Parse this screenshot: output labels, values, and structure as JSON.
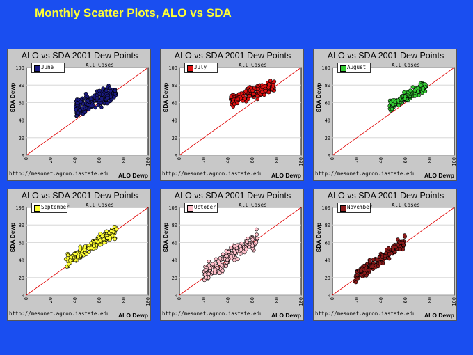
{
  "page": {
    "title": "Monthly Scatter Plots, ALO vs SDA"
  },
  "chart_data": [
    {
      "type": "scatter",
      "title": "ALO vs SDA 2001 Dew Points",
      "subtitle": "All Cases",
      "xlabel": "ALO Dewp",
      "ylabel": "SDA Dewp",
      "url": "http://mesonet.agron.iastate.edu",
      "legend": "June",
      "color": "#1a1a80",
      "xlim": [
        0,
        100
      ],
      "ylim": [
        0,
        100
      ],
      "xticks": [
        0,
        20,
        40,
        60,
        80,
        100
      ],
      "yticks": [
        0,
        20,
        40,
        60,
        80,
        100
      ],
      "ref_line": "y=x",
      "cloud": {
        "x": [
          40,
          74
        ],
        "center": [
          58,
          64
        ],
        "slope": 0.55,
        "spread": 7
      }
    },
    {
      "type": "scatter",
      "title": "ALO vs SDA 2001 Dew Points",
      "subtitle": "All Cases",
      "xlabel": "ALO Dewp",
      "ylabel": "SDA Dewp",
      "url": "http://mesonet.agron.iastate.edu",
      "legend": "July",
      "color": "#dd1111",
      "xlim": [
        0,
        100
      ],
      "ylim": [
        0,
        100
      ],
      "xticks": [
        0,
        20,
        40,
        60,
        80,
        100
      ],
      "yticks": [
        0,
        20,
        40,
        60,
        80,
        100
      ],
      "ref_line": "y=x",
      "cloud": {
        "x": [
          42,
          78
        ],
        "center": [
          62,
          72
        ],
        "slope": 0.45,
        "spread": 5
      }
    },
    {
      "type": "scatter",
      "title": "ALO vs SDA 2001 Dew Points",
      "subtitle": "All Cases",
      "xlabel": "ALO Dewp",
      "ylabel": "SDA Dewp",
      "url": "http://mesonet.agron.iastate.edu",
      "legend": "August",
      "color": "#33cc33",
      "xlim": [
        0,
        100
      ],
      "ylim": [
        0,
        100
      ],
      "xticks": [
        0,
        20,
        40,
        60,
        80,
        100
      ],
      "yticks": [
        0,
        20,
        40,
        60,
        80,
        100
      ],
      "ref_line": "y=x",
      "cloud": {
        "x": [
          47,
          77
        ],
        "center": [
          62,
          68
        ],
        "slope": 0.8,
        "spread": 4
      }
    },
    {
      "type": "scatter",
      "title": "ALO vs SDA 2001 Dew Points",
      "subtitle": "All Cases",
      "xlabel": "ALO Dewp",
      "ylabel": "SDA Dewp",
      "url": "http://mesonet.agron.iastate.edu",
      "legend": "September",
      "color": "#ffff33",
      "xlim": [
        0,
        100
      ],
      "ylim": [
        0,
        100
      ],
      "xticks": [
        0,
        20,
        40,
        60,
        80,
        100
      ],
      "yticks": [
        0,
        20,
        40,
        60,
        80,
        100
      ],
      "ref_line": "y=x",
      "cloud": {
        "x": [
          32,
          74
        ],
        "center": [
          52,
          55
        ],
        "slope": 0.85,
        "spread": 5
      }
    },
    {
      "type": "scatter",
      "title": "ALO vs SDA 2001 Dew Points",
      "subtitle": "All Cases",
      "xlabel": "ALO Dewp",
      "ylabel": "SDA Dewp",
      "url": "http://mesonet.agron.iastate.edu",
      "legend": "October",
      "color": "#ffc0cb",
      "xlim": [
        0,
        100
      ],
      "ylim": [
        0,
        100
      ],
      "xticks": [
        0,
        20,
        40,
        60,
        80,
        100
      ],
      "yticks": [
        0,
        20,
        40,
        60,
        80,
        100
      ],
      "ref_line": "y=x",
      "cloud": {
        "x": [
          20,
          64
        ],
        "center": [
          40,
          42
        ],
        "slope": 0.95,
        "spread": 7
      }
    },
    {
      "type": "scatter",
      "title": "ALO vs SDA 2001 Dew Points",
      "subtitle": "All Cases",
      "xlabel": "ALO Dewp",
      "ylabel": "SDA Dewp",
      "url": "http://mesonet.agron.iastate.edu",
      "legend": "November",
      "color": "#8b1a1a",
      "xlim": [
        0,
        100
      ],
      "ylim": [
        0,
        100
      ],
      "xticks": [
        0,
        20,
        40,
        60,
        80,
        100
      ],
      "yticks": [
        0,
        20,
        40,
        60,
        80,
        100
      ],
      "ref_line": "y=x",
      "cloud": {
        "x": [
          18,
          60
        ],
        "center": [
          40,
          42
        ],
        "slope": 1.0,
        "spread": 5
      }
    }
  ]
}
